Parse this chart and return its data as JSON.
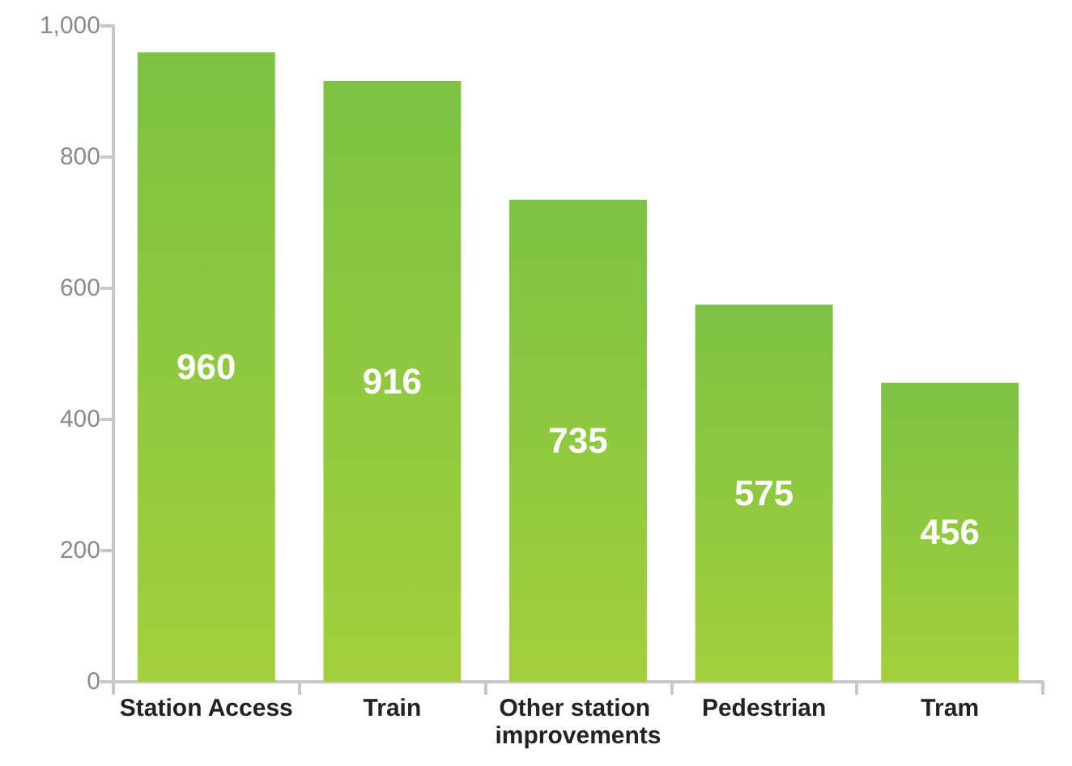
{
  "chart_data": {
    "type": "bar",
    "categories": [
      "Station Access",
      "Train",
      "Other station improvements",
      "Pedestrian",
      "Tram"
    ],
    "values": [
      960,
      916,
      735,
      575,
      456
    ],
    "color": "#7cc243",
    "ylim": [
      0,
      1000
    ],
    "yticks": [
      0,
      200,
      400,
      600,
      800,
      {
        "value": 1000,
        "label": "1,000"
      }
    ],
    "grid": false,
    "data_labels": true
  }
}
